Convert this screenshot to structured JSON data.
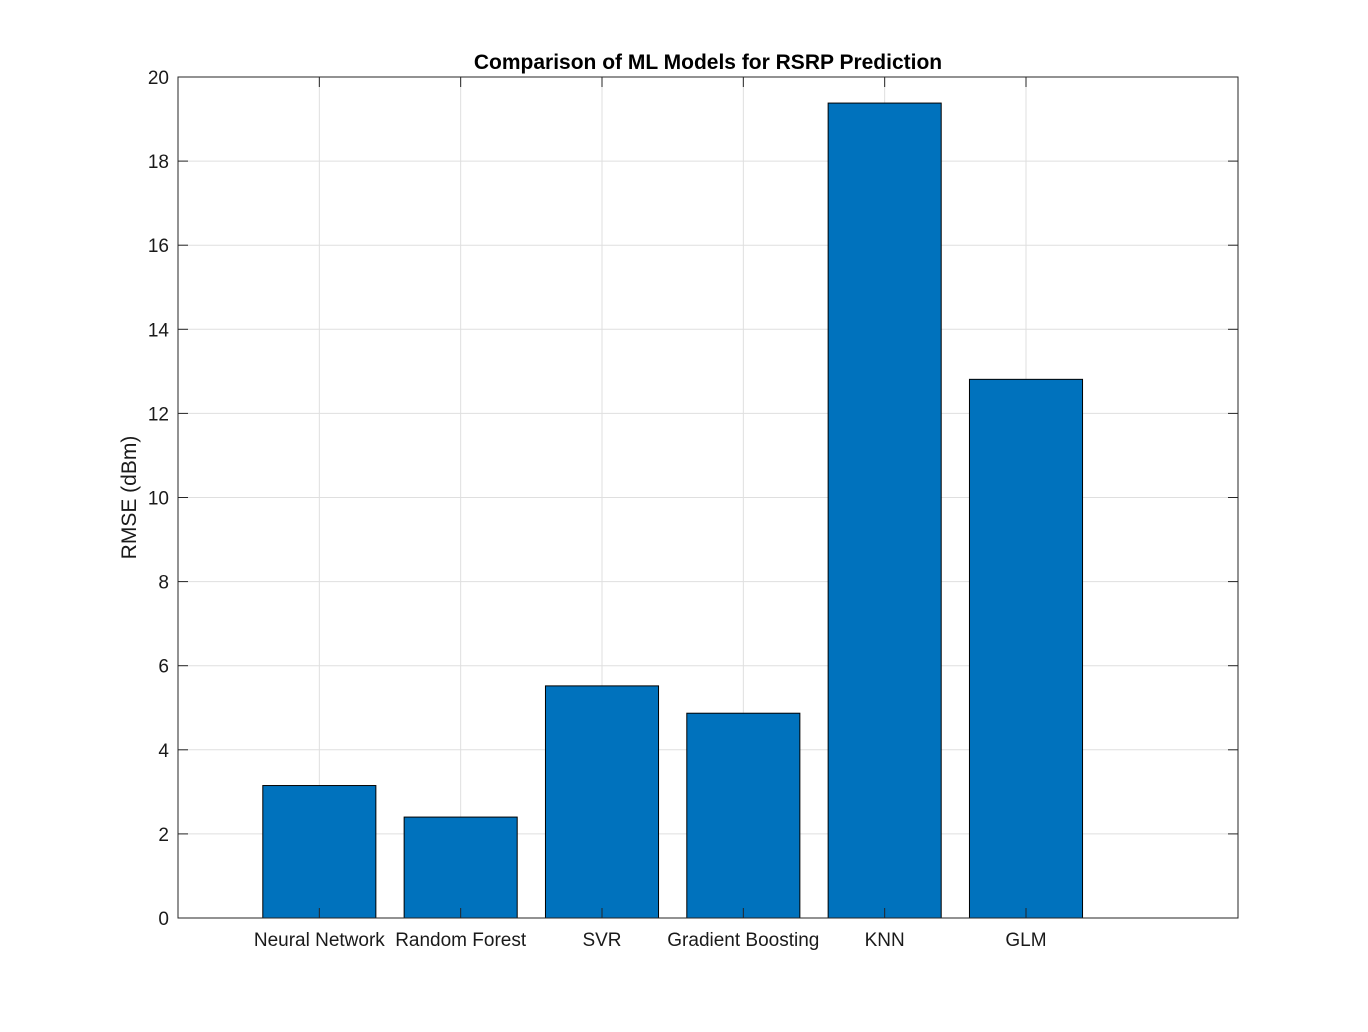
{
  "chart_data": {
    "type": "bar",
    "title": "Comparison of ML Models for RSRP Prediction",
    "xlabel": "",
    "ylabel": "RMSE (dBm)",
    "categories": [
      "Neural Network",
      "Random Forest",
      "SVR",
      "Gradient Boosting",
      "KNN",
      "GLM"
    ],
    "values": [
      3.15,
      2.4,
      5.52,
      4.87,
      19.38,
      12.81
    ],
    "ylim": [
      0,
      20
    ],
    "yticks": [
      0,
      2,
      4,
      6,
      8,
      10,
      12,
      14,
      16,
      18,
      20
    ],
    "ytick_labels": [
      "0",
      "2",
      "4",
      "6",
      "8",
      "10",
      "12",
      "14",
      "16",
      "18",
      "20"
    ],
    "xlim": [
      0,
      7.5
    ],
    "grid": true,
    "colors": {
      "bar": "#0072bd",
      "bar_edge": "#000000",
      "grid": "#dfdfdf",
      "axis": "#262626"
    }
  }
}
